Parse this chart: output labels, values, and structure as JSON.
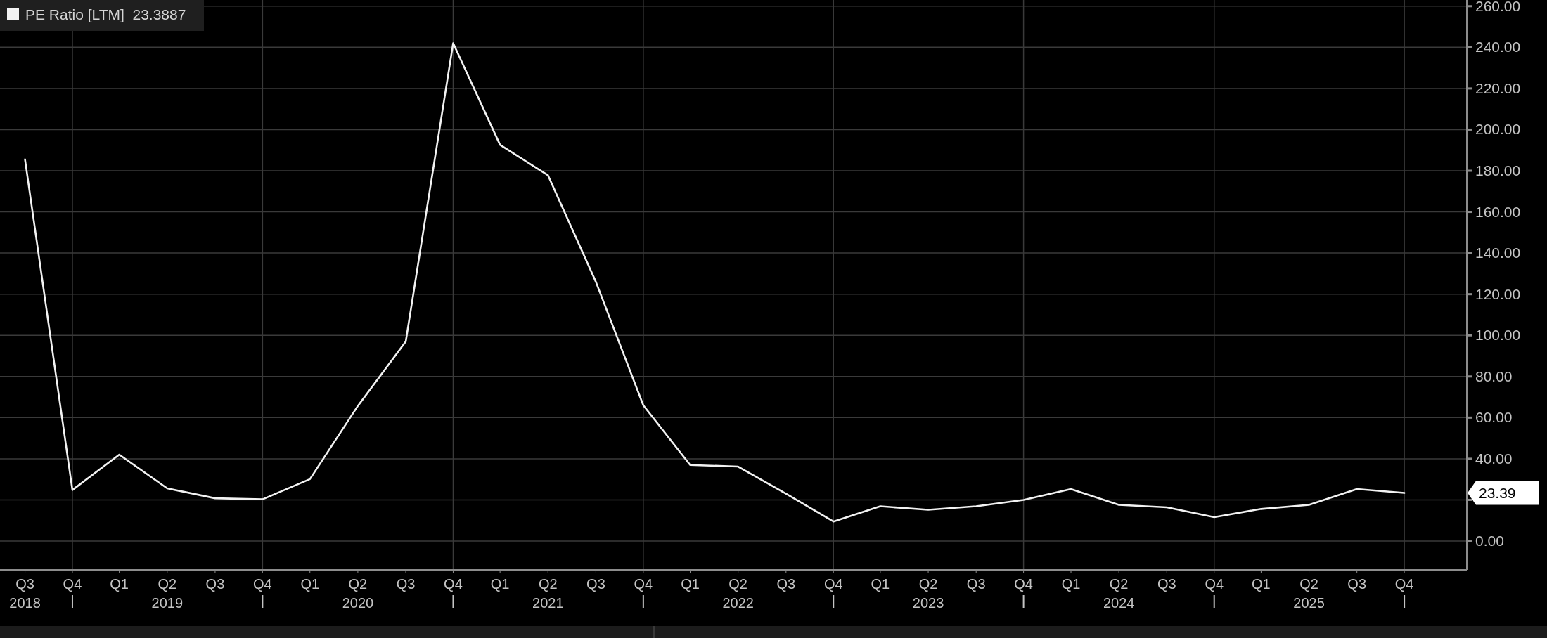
{
  "chart_data": {
    "type": "line",
    "x": [
      "2018-09",
      "2018-12",
      "2019-03",
      "2019-06",
      "2019-09",
      "2019-12",
      "2020-03",
      "2020-06",
      "2020-09",
      "2020-12",
      "2021-03",
      "2021-06",
      "2021-09",
      "2021-12",
      "2022-03",
      "2022-06",
      "2022-09",
      "2022-12",
      "2023-03",
      "2023-06",
      "2023-09",
      "2023-12",
      "2024-03",
      "2024-06",
      "2024-09",
      "2024-12",
      "2025-03",
      "2025-06",
      "2025-09",
      "2025-12"
    ],
    "series": [
      {
        "name": "PE Ratio [LTM]  23.3887",
        "color": "#f2f2f2",
        "values": [
          185.5,
          24.8,
          42.0,
          25.6,
          20.8,
          20.3,
          30.1,
          65.7,
          97.0,
          242.0,
          192.6,
          177.8,
          126.0,
          66.0,
          37.0,
          36.2,
          23.0,
          9.5,
          16.9,
          15.2,
          16.9,
          20.0,
          25.3,
          17.6,
          16.4,
          11.6,
          15.6,
          17.6,
          25.3,
          23.39
        ]
      }
    ],
    "xlim": [
      "2018-07-15",
      "2026-03-31"
    ],
    "xticks": [
      {
        "value": "2018-09",
        "label": "Q3\n2018"
      },
      {
        "value": "2018-12",
        "label": "Q4"
      },
      {
        "value": "2019-03",
        "label": "Q1"
      },
      {
        "value": "2019-06",
        "label": "Q2\n2019"
      },
      {
        "value": "2019-09",
        "label": "Q3"
      },
      {
        "value": "2019-12",
        "label": "Q4"
      },
      {
        "value": "2020-03",
        "label": "Q1"
      },
      {
        "value": "2020-06",
        "label": "Q2\n2020"
      },
      {
        "value": "2020-09",
        "label": "Q3"
      },
      {
        "value": "2020-12",
        "label": "Q4"
      },
      {
        "value": "2021-03",
        "label": "Q1"
      },
      {
        "value": "2021-06",
        "label": "Q2\n2021"
      },
      {
        "value": "2021-09",
        "label": "Q3"
      },
      {
        "value": "2021-12",
        "label": "Q4"
      },
      {
        "value": "2022-03",
        "label": "Q1"
      },
      {
        "value": "2022-06",
        "label": "Q2\n2022"
      },
      {
        "value": "2022-09",
        "label": "Q3"
      },
      {
        "value": "2022-12",
        "label": "Q4"
      },
      {
        "value": "2023-03",
        "label": "Q1"
      },
      {
        "value": "2023-06",
        "label": "Q2\n2023"
      },
      {
        "value": "2023-09",
        "label": "Q3"
      },
      {
        "value": "2023-12",
        "label": "Q4"
      },
      {
        "value": "2024-03",
        "label": "Q1"
      },
      {
        "value": "2024-06",
        "label": "Q2\n2024"
      },
      {
        "value": "2024-09",
        "label": "Q3"
      },
      {
        "value": "2024-12",
        "label": "Q4"
      },
      {
        "value": "2025-03",
        "label": "Q1"
      },
      {
        "value": "2025-06",
        "label": "Q2\n2025"
      },
      {
        "value": "2025-09",
        "label": "Q3"
      },
      {
        "value": "2025-12",
        "label": "Q4"
      }
    ],
    "ylim": [
      -14,
      263
    ],
    "yticks": [
      {
        "value": 0,
        "label": "0.00"
      },
      {
        "value": 20,
        "label": null
      },
      {
        "value": 40,
        "label": "40.00"
      },
      {
        "value": 60,
        "label": "60.00"
      },
      {
        "value": 80,
        "label": "80.00"
      },
      {
        "value": 100,
        "label": "100.00"
      },
      {
        "value": 120,
        "label": "120.00"
      },
      {
        "value": 140,
        "label": "140.00"
      },
      {
        "value": 160,
        "label": "160.00"
      },
      {
        "value": 180,
        "label": "180.00"
      },
      {
        "value": 200,
        "label": "200.00"
      },
      {
        "value": 220,
        "label": "220.00"
      },
      {
        "value": 240,
        "label": "240.00"
      },
      {
        "value": 260,
        "label": "260.00"
      }
    ],
    "annotations": [
      "23.39"
    ],
    "grid": true,
    "legend": "top left",
    "marker": "none"
  }
}
